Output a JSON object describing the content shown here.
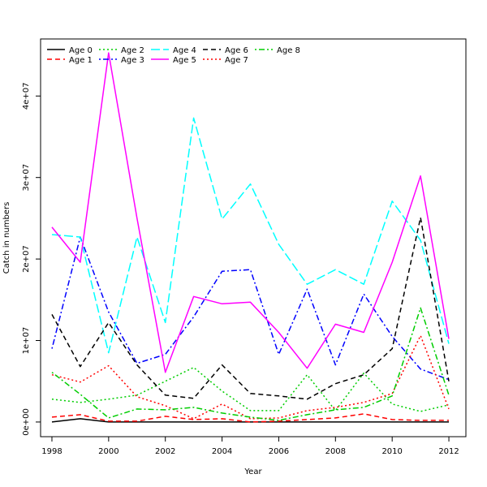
{
  "chart_data": {
    "type": "line",
    "title": "",
    "xlabel": "Year",
    "ylabel": "Catch in numbers",
    "xlim": [
      1997.6,
      2012.6
    ],
    "ylim": [
      -1800000,
      47000000
    ],
    "grid": false,
    "legend_placement": "top-left",
    "x": [
      1998,
      1999,
      2000,
      2001,
      2002,
      2003,
      2004,
      2005,
      2006,
      2007,
      2008,
      2009,
      2010,
      2011,
      2012
    ],
    "x_ticks": [
      1998,
      2000,
      2002,
      2004,
      2006,
      2008,
      2010,
      2012
    ],
    "x_tick_labels": [
      "1998",
      "2000",
      "2002",
      "2004",
      "2006",
      "2008",
      "2010",
      "2012"
    ],
    "y_ticks": [
      0,
      10000000,
      20000000,
      30000000,
      40000000
    ],
    "y_tick_labels": [
      "0e+00",
      "1e+07",
      "2e+07",
      "3e+07",
      "4e+07"
    ],
    "series": [
      {
        "name": "Age 0",
        "color": "#000000",
        "dash": "solid",
        "values": [
          0,
          400000,
          0,
          0,
          0,
          0,
          0,
          0,
          0,
          0,
          0,
          0,
          0,
          0,
          0
        ]
      },
      {
        "name": "Age 1",
        "color": "#ff0000",
        "dash": "dashed",
        "values": [
          600000,
          900000,
          100000,
          100000,
          700000,
          300000,
          400000,
          0,
          100000,
          300000,
          500000,
          1000000,
          300000,
          200000,
          200000
        ]
      },
      {
        "name": "Age 2",
        "color": "#00cd00",
        "dash": "dotted",
        "values": [
          2800000,
          2400000,
          2800000,
          3300000,
          5000000,
          6700000,
          3800000,
          1400000,
          1400000,
          5800000,
          1400000,
          6000000,
          2200000,
          1300000,
          2100000
        ]
      },
      {
        "name": "Age 3",
        "color": "#0000ff",
        "dash": "dotdash",
        "values": [
          9000000,
          22700000,
          13500000,
          7200000,
          8300000,
          12900000,
          18500000,
          18700000,
          8300000,
          16300000,
          7000000,
          15700000,
          10500000,
          6500000,
          5200000
        ]
      },
      {
        "name": "Age 4",
        "color": "#00ffff",
        "dash": "longdash",
        "values": [
          23000000,
          22700000,
          8500000,
          22700000,
          12200000,
          37300000,
          24900000,
          29200000,
          21800000,
          16900000,
          18700000,
          16900000,
          27100000,
          22300000,
          9600000
        ]
      },
      {
        "name": "Age 5",
        "color": "#ff00ff",
        "dash": "solid",
        "values": [
          23900000,
          19600000,
          45300000,
          25000000,
          6100000,
          15400000,
          14500000,
          14700000,
          11000000,
          6600000,
          12000000,
          11000000,
          19600000,
          30200000,
          10200000
        ]
      },
      {
        "name": "Age 6",
        "color": "#000000",
        "dash": "dashed",
        "values": [
          13200000,
          6800000,
          12200000,
          7000000,
          3300000,
          2900000,
          7000000,
          3500000,
          3200000,
          2800000,
          4700000,
          5800000,
          9000000,
          25100000,
          5000000
        ]
      },
      {
        "name": "Age 7",
        "color": "#ff0000",
        "dash": "dotted",
        "values": [
          5800000,
          4900000,
          6900000,
          3100000,
          2000000,
          400000,
          2200000,
          400000,
          500000,
          1400000,
          1800000,
          2400000,
          3500000,
          10600000,
          1600000
        ]
      },
      {
        "name": "Age 8",
        "color": "#00cd00",
        "dash": "dotdash",
        "values": [
          6100000,
          3400000,
          500000,
          1600000,
          1500000,
          1800000,
          1100000,
          600000,
          200000,
          900000,
          1500000,
          1800000,
          3200000,
          14000000,
          3300000
        ]
      }
    ]
  }
}
